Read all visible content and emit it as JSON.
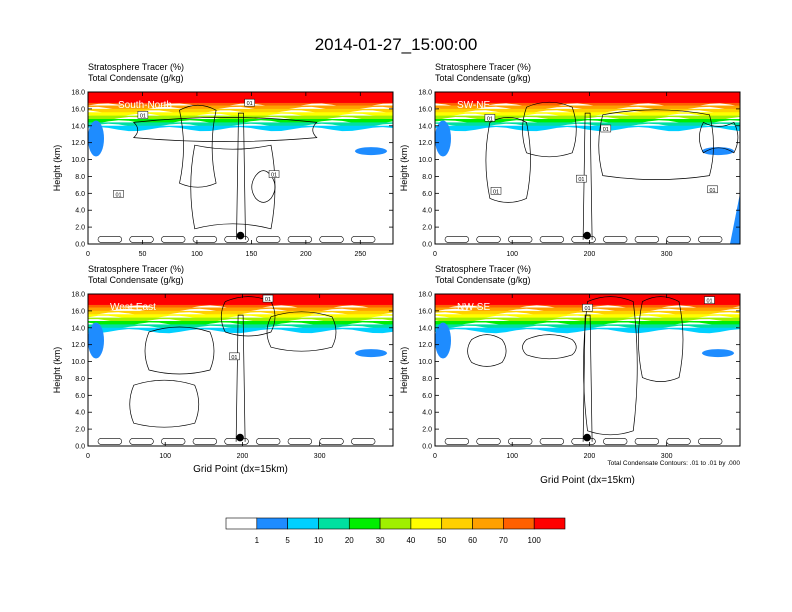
{
  "title": "2014-01-27_15:00:00",
  "colors": {
    "scale": [
      "#ffffff",
      "#1e8cff",
      "#00d0ff",
      "#00e0a0",
      "#00ee00",
      "#a0f000",
      "#ffff00",
      "#ffd000",
      "#ffa000",
      "#ff6000",
      "#ff0000"
    ],
    "contour": "#000000"
  },
  "chart_data": [
    {
      "type": "heatmap",
      "panel": "top-left",
      "label": "South-North",
      "title_line1": "Stratosphere Tracer   (%)",
      "title_line2": "Total Condensate   (g/kg)",
      "ylabel": "Height (km)",
      "xlabel": "",
      "xlim": [
        0,
        280
      ],
      "xticks": [
        "0",
        "50",
        "100",
        "150",
        "200",
        "250"
      ],
      "xtick_values": [
        0,
        50,
        100,
        150,
        200,
        250
      ],
      "ylim": [
        0,
        18
      ],
      "yticks": [
        "0.0",
        "2.0",
        "4.0",
        "6.0",
        "8.0",
        "10.0",
        "12.0",
        "14.0",
        "16.0",
        "18.0"
      ],
      "contour_labels": [
        "01",
        "01",
        "01",
        "01"
      ],
      "marker_x": 140,
      "marker_km": 1.0
    },
    {
      "type": "heatmap",
      "panel": "top-right",
      "label": "SW-NE",
      "title_line1": "Stratosphere Tracer   (%)",
      "title_line2": "Total Condensate   (g/kg)",
      "ylabel": "Height (km)",
      "xlabel": "",
      "xlim": [
        0,
        395
      ],
      "xticks": [
        "0",
        "100",
        "200",
        "300"
      ],
      "xtick_values": [
        0,
        100,
        200,
        300
      ],
      "ylim": [
        0,
        18
      ],
      "yticks": [
        "0.0",
        "2.0",
        "4.0",
        "6.0",
        "8.0",
        "10.0",
        "12.0",
        "14.0",
        "16.0",
        "18.0"
      ],
      "contour_labels": [
        "01",
        "01",
        "01",
        "01",
        "01"
      ],
      "marker_x": 197,
      "marker_km": 1.0
    },
    {
      "type": "heatmap",
      "panel": "bottom-left",
      "label": "West-East",
      "title_line1": "Stratosphere Tracer   (%)",
      "title_line2": "Total Condensate   (g/kg)",
      "ylabel": "Height (km)",
      "xlabel": "Grid Point (dx=15km)",
      "xlim": [
        0,
        395
      ],
      "xticks": [
        "0",
        "100",
        "200",
        "300"
      ],
      "xtick_values": [
        0,
        100,
        200,
        300
      ],
      "ylim": [
        0,
        18
      ],
      "yticks": [
        "0.0",
        "2.0",
        "4.0",
        "6.0",
        "8.0",
        "10.0",
        "12.0",
        "14.0",
        "16.0",
        "18.0"
      ],
      "contour_labels": [
        "01",
        "01"
      ],
      "marker_x": 197,
      "marker_km": 1.0
    },
    {
      "type": "heatmap",
      "panel": "bottom-right",
      "label": "NW-SE",
      "title_line1": "Stratosphere Tracer   (%)",
      "title_line2": "Total Condensate   (g/kg)",
      "ylabel": "Height (km)",
      "xlabel": "Grid Point (dx=15km)",
      "xlim": [
        0,
        395
      ],
      "xticks": [
        "0",
        "100",
        "200",
        "300"
      ],
      "xtick_values": [
        0,
        100,
        200,
        300
      ],
      "ylim": [
        0,
        18
      ],
      "yticks": [
        "0.0",
        "2.0",
        "4.0",
        "6.0",
        "8.0",
        "10.0",
        "12.0",
        "14.0",
        "16.0",
        "18.0"
      ],
      "contour_labels": [
        "01",
        "01"
      ],
      "marker_x": 197,
      "marker_km": 1.0,
      "footnote": "Total Condensate Contours: .01 to .01 by .000"
    }
  ],
  "colorbar": {
    "labels": [
      "1",
      "5",
      "10",
      "20",
      "30",
      "40",
      "50",
      "60",
      "70",
      "100"
    ]
  }
}
